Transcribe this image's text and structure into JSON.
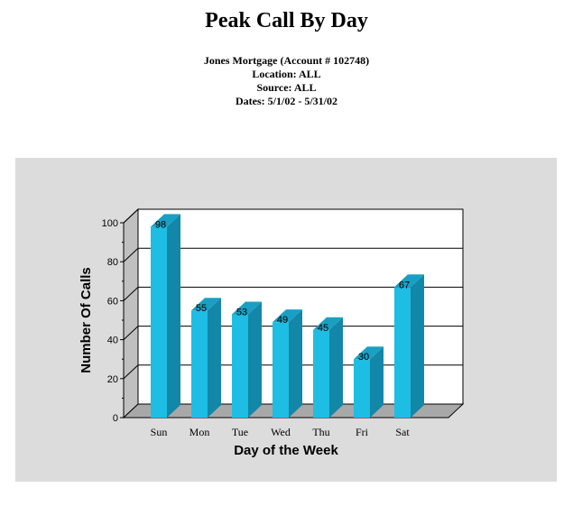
{
  "header": {
    "title": "Peak Call By Day",
    "lines": [
      "Jones Mortgage (Account # 102748)",
      "Location: ALL",
      "Source: ALL",
      "Dates: 5/1/02 - 5/31/02"
    ]
  },
  "colors": {
    "panel": "#dcdcdc",
    "bar_front": "#1ebde3",
    "bar_side": "#1287a8",
    "bar_top": "#1a9fc4",
    "wall": "#c0c0c0",
    "floor": "#a8a8a8"
  },
  "chart_data": {
    "type": "bar",
    "categories": [
      "Sun",
      "Mon",
      "Tue",
      "Wed",
      "Thu",
      "Fri",
      "Sat"
    ],
    "values": [
      98,
      55,
      53,
      49,
      45,
      30,
      67
    ],
    "title": "Peak Call By Day",
    "xlabel": "Day of the Week",
    "ylabel": "Number Of Calls",
    "ylim": [
      0,
      100
    ],
    "yticks": [
      0,
      20,
      40,
      60,
      80,
      100
    ],
    "grid": true,
    "legend": "none",
    "style": "3d"
  }
}
